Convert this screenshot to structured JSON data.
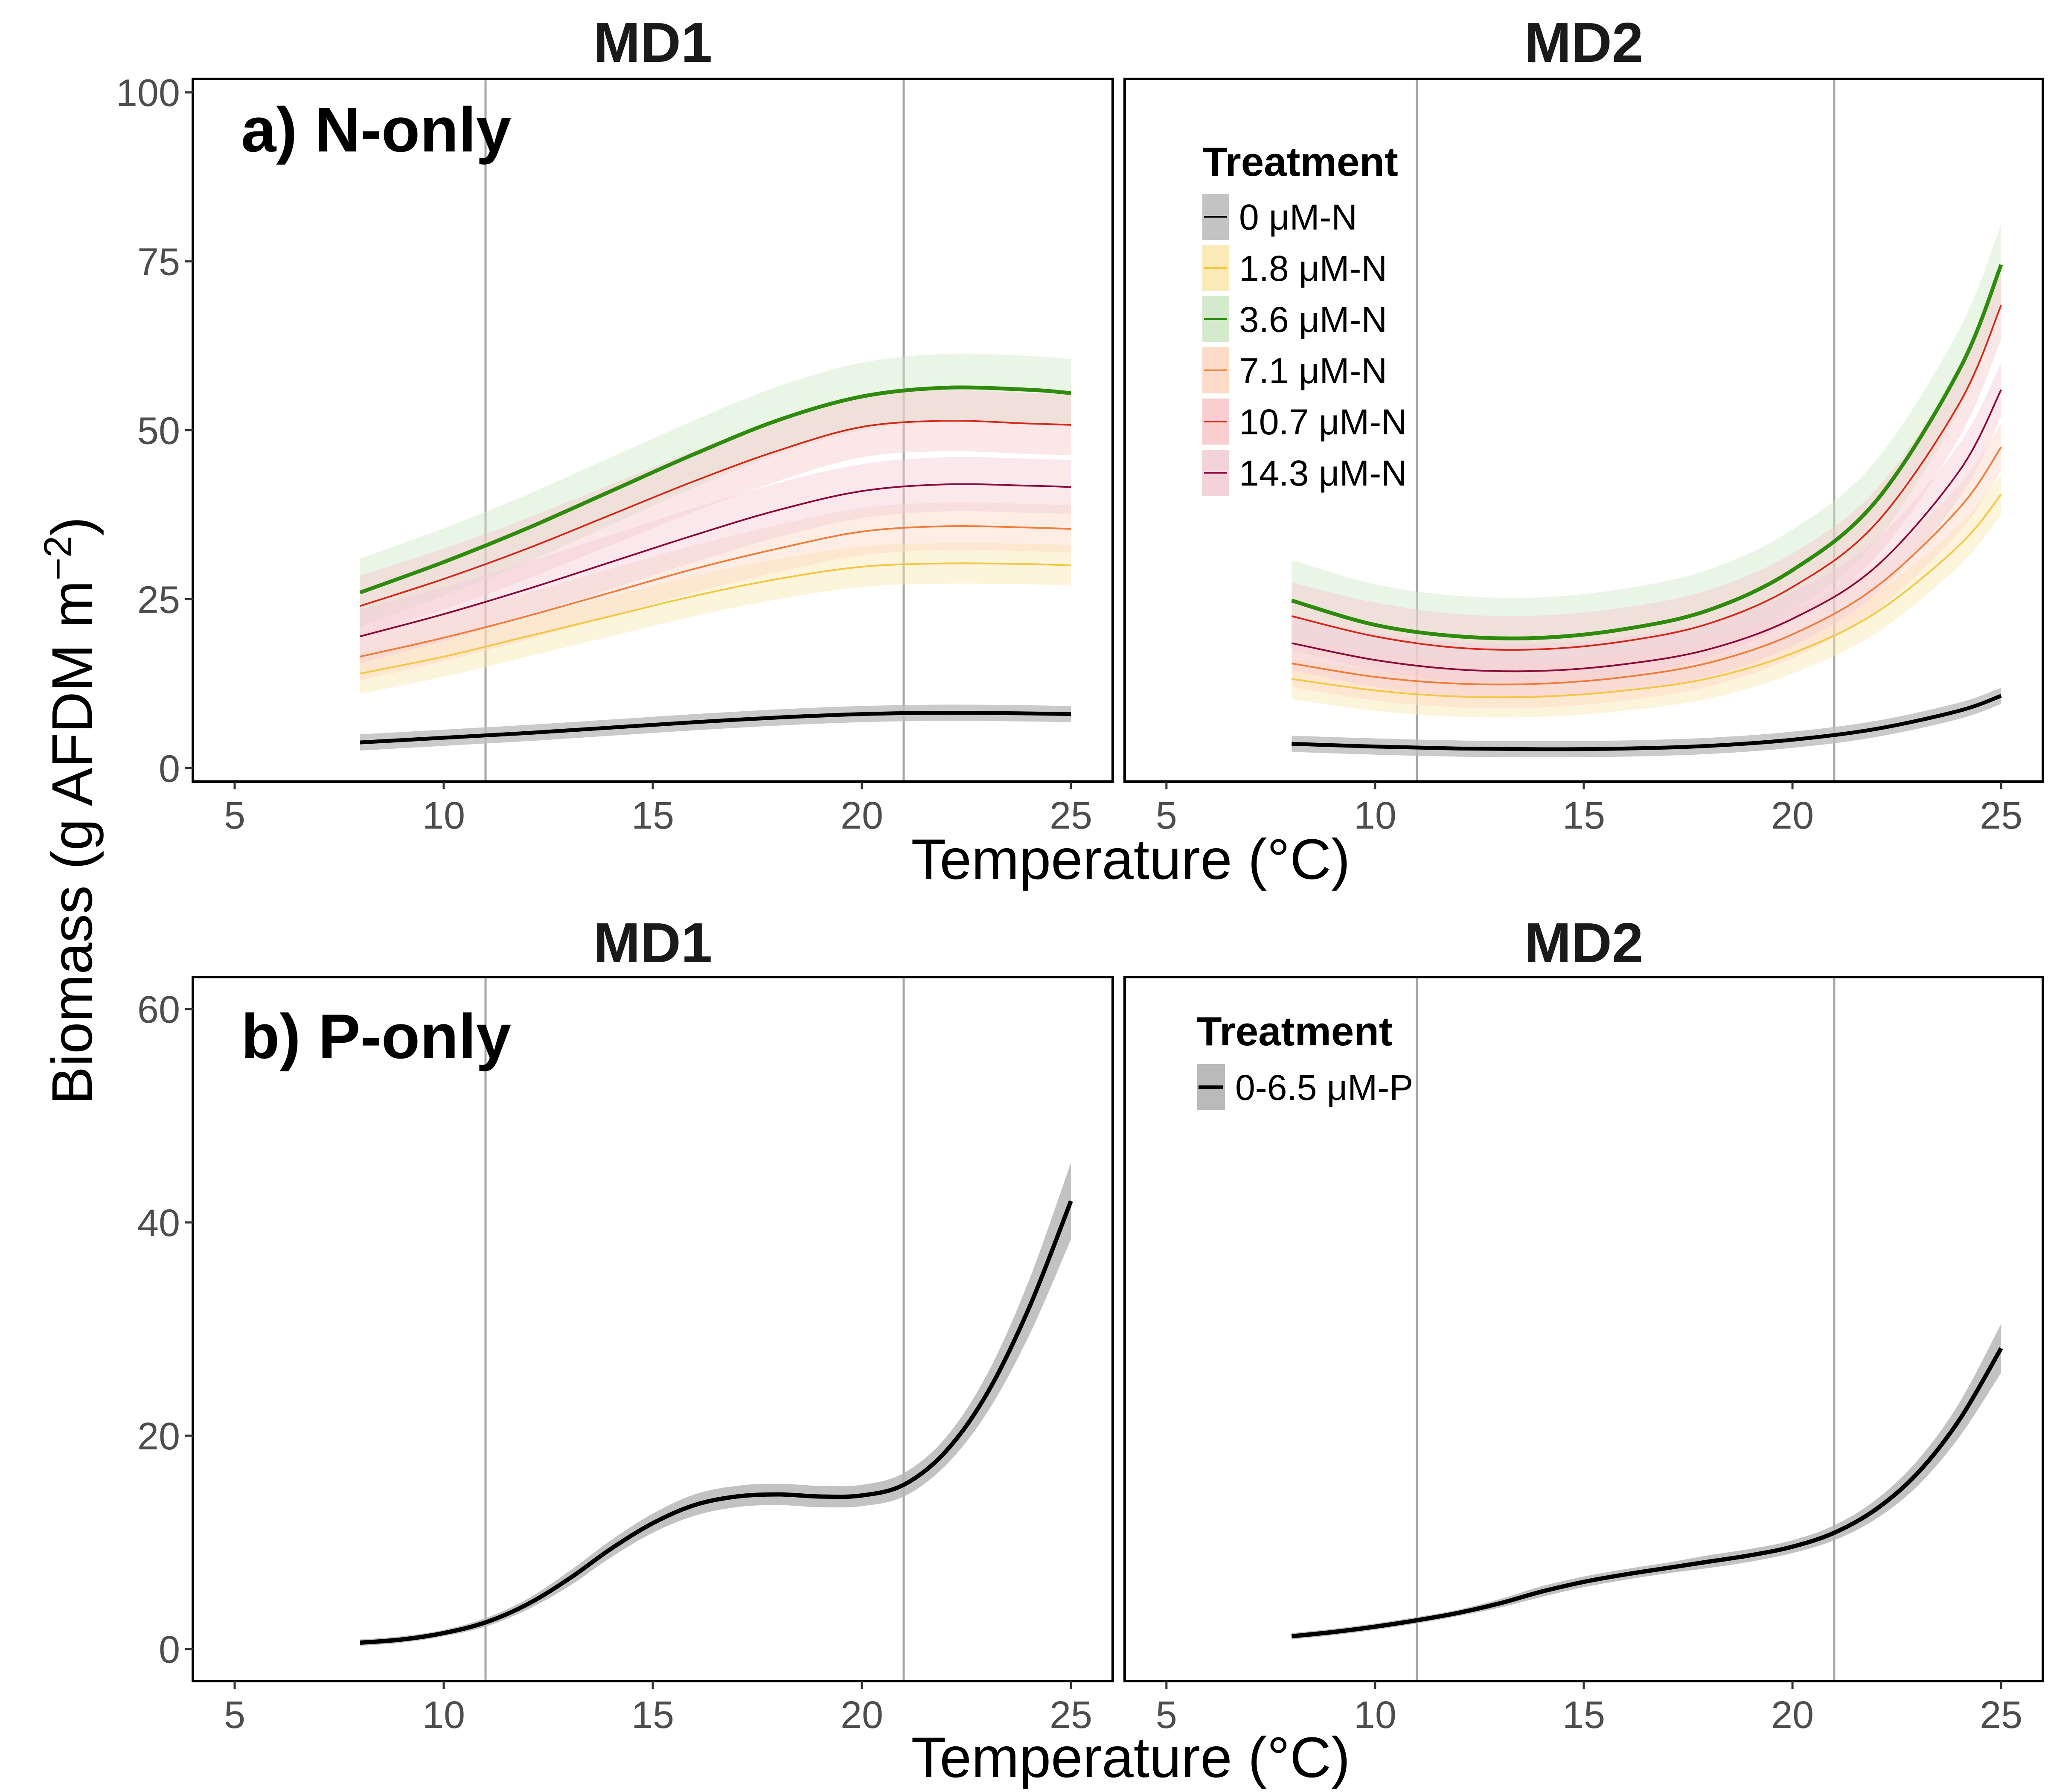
{
  "figure": {
    "ylabel_main": "Biomass (g AFDM m",
    "ylabel_exp": "−2",
    "ylabel_close": ")",
    "xlabel": "Temperature (°C)",
    "vlines": [
      11,
      21
    ]
  },
  "chart_data": [
    {
      "type": "line",
      "panel_label": "a) N-only",
      "facets": [
        "MD1",
        "MD2"
      ],
      "xlabel": "Temperature (°C)",
      "ylabel": "Biomass (g AFDM m−2)",
      "xlim": [
        4,
        26
      ],
      "ylim": [
        -2,
        102
      ],
      "xticks": [
        5,
        10,
        15,
        20,
        25
      ],
      "yticks": [
        0,
        25,
        50,
        75,
        100
      ],
      "grid": false,
      "legend": {
        "title": "Treatment",
        "placement": "inside MD2 panel, top-left"
      },
      "series": [
        {
          "name": "0 μM-N",
          "color": "#000000",
          "band": "#bdbdbd",
          "width": 9,
          "MD1": {
            "x": [
              8,
              10,
              12,
              14,
              16,
              18,
              20,
              22,
              24,
              25
            ],
            "y": [
              3.8,
              4.5,
              5.2,
              6.0,
              6.8,
              7.5,
              8.0,
              8.2,
              8.1,
              8.0
            ],
            "ci": 1.2
          },
          "MD2": {
            "x": [
              8,
              10,
              12,
              14,
              16,
              18,
              20,
              22,
              24,
              25
            ],
            "y": [
              3.6,
              3.2,
              2.9,
              2.8,
              2.9,
              3.3,
              4.2,
              5.8,
              8.5,
              10.7
            ],
            "ci": 1.2
          }
        },
        {
          "name": "1.8 μM-N",
          "color": "#f2c744",
          "band": "#fbe8b0",
          "width": 4,
          "MD1": {
            "x": [
              8,
              10,
              12,
              14,
              16,
              18,
              20,
              22,
              24,
              25
            ],
            "y": [
              14.0,
              16.5,
              19.5,
              22.5,
              25.5,
              28.0,
              29.8,
              30.3,
              30.2,
              30.0
            ],
            "ci": 3.0
          },
          "MD2": {
            "x": [
              8,
              10,
              12,
              14,
              16,
              18,
              20,
              22,
              24,
              25
            ],
            "y": [
              13.2,
              11.5,
              10.6,
              10.6,
              11.5,
              13.3,
              17.0,
              23.0,
              33.0,
              40.5
            ],
            "ci": 3.0
          }
        },
        {
          "name": "3.6 μM-N",
          "color": "#2e8b0e",
          "band": "#cfe8c6",
          "width": 9,
          "MD1": {
            "x": [
              8,
              10,
              12,
              14,
              16,
              18,
              20,
              22,
              24,
              25
            ],
            "y": [
              26.0,
              30.5,
              35.5,
              41.0,
              46.5,
              51.5,
              55.0,
              56.3,
              56.0,
              55.5
            ],
            "ci": 5.0
          },
          "MD2": {
            "x": [
              8,
              10,
              12,
              14,
              16,
              18,
              20,
              22,
              24,
              25
            ],
            "y": [
              24.8,
              21.2,
              19.5,
              19.3,
              20.6,
              23.4,
              29.3,
              39.5,
              59.0,
              74.5
            ],
            "ci": 6.0
          }
        },
        {
          "name": "7.1 μM-N",
          "color": "#ef7d3b",
          "band": "#fcd8c3",
          "width": 4,
          "MD1": {
            "x": [
              8,
              10,
              12,
              14,
              16,
              18,
              20,
              22,
              24,
              25
            ],
            "y": [
              16.5,
              19.3,
              22.5,
              26.0,
              29.5,
              32.5,
              35.0,
              35.8,
              35.6,
              35.4
            ],
            "ci": 3.5
          },
          "MD2": {
            "x": [
              8,
              10,
              12,
              14,
              16,
              18,
              20,
              22,
              24,
              25
            ],
            "y": [
              15.5,
              13.5,
              12.5,
              12.5,
              13.5,
              15.6,
              19.8,
              26.8,
              38.5,
              47.5
            ],
            "ci": 3.5
          }
        },
        {
          "name": "10.7 μM-N",
          "color": "#d42a1c",
          "band": "#f7c9cc",
          "width": 4,
          "MD1": {
            "x": [
              8,
              10,
              12,
              14,
              16,
              18,
              20,
              22,
              24,
              25
            ],
            "y": [
              24.0,
              28.0,
              32.5,
              37.5,
              42.5,
              47.0,
              50.5,
              51.4,
              51.0,
              50.8
            ],
            "ci": 4.5
          },
          "MD2": {
            "x": [
              8,
              10,
              12,
              14,
              16,
              18,
              20,
              22,
              24,
              25
            ],
            "y": [
              22.5,
              19.5,
              17.8,
              17.6,
              18.8,
              21.4,
              26.8,
              36.2,
              54.0,
              68.5
            ],
            "ci": 5.0
          }
        },
        {
          "name": "14.3 μM-N",
          "color": "#8b0a3c",
          "band": "#f3cdd6",
          "width": 4,
          "MD1": {
            "x": [
              8,
              10,
              12,
              14,
              16,
              18,
              20,
              22,
              24,
              25
            ],
            "y": [
              19.5,
              22.8,
              26.5,
              30.5,
              34.5,
              38.2,
              41.0,
              42.0,
              41.8,
              41.6
            ],
            "ci": 4.0
          },
          "MD2": {
            "x": [
              8,
              10,
              12,
              14,
              16,
              18,
              20,
              22,
              24,
              25
            ],
            "y": [
              18.5,
              16.0,
              14.6,
              14.4,
              15.4,
              17.6,
              22.1,
              29.8,
              44.0,
              56.0
            ],
            "ci": 4.0
          }
        }
      ]
    },
    {
      "type": "line",
      "panel_label": "b) P-only",
      "facets": [
        "MD1",
        "MD2"
      ],
      "xlabel": "Temperature (°C)",
      "ylabel": "Biomass (g AFDM m−2)",
      "xlim": [
        4,
        26
      ],
      "ylim": [
        -3,
        63
      ],
      "xticks": [
        5,
        10,
        15,
        20,
        25
      ],
      "yticks": [
        0,
        20,
        40,
        60
      ],
      "grid": false,
      "legend": {
        "title": "Treatment",
        "placement": "inside MD2 panel, top-left"
      },
      "series": [
        {
          "name": "0-6.5 μM-P",
          "color": "#000000",
          "band": "#b3b3b3",
          "width": 10,
          "MD1": {
            "x": [
              8,
              9,
              10,
              11,
              12,
              13,
              14,
              15,
              16,
              17,
              18,
              19,
              20,
              21,
              22,
              23,
              24,
              25
            ],
            "y": [
              0.6,
              0.9,
              1.5,
              2.5,
              4.2,
              6.6,
              9.4,
              11.8,
              13.5,
              14.3,
              14.5,
              14.3,
              14.4,
              15.4,
              18.5,
              24.0,
              32.0,
              42.0
            ],
            "ci": [
              0.3,
              0.3,
              0.3,
              0.4,
              0.5,
              0.7,
              0.8,
              0.9,
              1.0,
              1.0,
              1.0,
              1.0,
              1.0,
              1.1,
              1.3,
              1.8,
              2.6,
              3.6
            ]
          },
          "MD2": {
            "x": [
              8,
              9,
              10,
              11,
              12,
              13,
              14,
              15,
              16,
              17,
              18,
              19,
              20,
              21,
              22,
              23,
              24,
              25
            ],
            "y": [
              1.2,
              1.6,
              2.1,
              2.7,
              3.4,
              4.3,
              5.4,
              6.3,
              7.0,
              7.6,
              8.2,
              8.8,
              9.6,
              10.9,
              13.1,
              16.5,
              21.5,
              28.2
            ],
            "ci": [
              0.3,
              0.3,
              0.3,
              0.3,
              0.3,
              0.4,
              0.5,
              0.5,
              0.5,
              0.5,
              0.6,
              0.6,
              0.6,
              0.7,
              0.9,
              1.2,
              1.6,
              2.3
            ]
          }
        }
      ]
    }
  ]
}
